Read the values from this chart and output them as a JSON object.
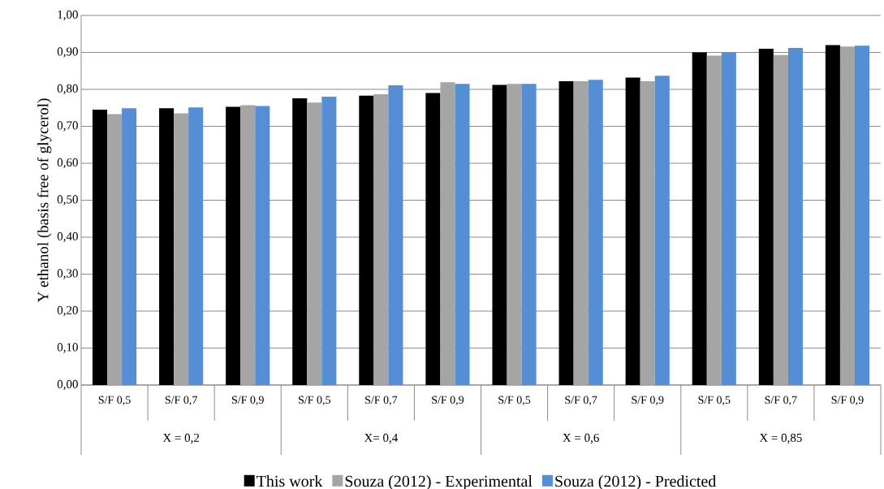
{
  "chart_data": {
    "type": "bar",
    "ylabel": "Y ethanol (basis free of glycerol)",
    "categories": [
      "S/F 0,5",
      "S/F 0,7",
      "S/F 0,9",
      "S/F 0,5",
      "S/F 0,7",
      "S/F 0,9",
      "S/F 0,5",
      "S/F 0,7",
      "S/F 0,9",
      "S/F 0,5",
      "S/F 0,7",
      "S/F 0,9"
    ],
    "annotations": [
      "X = 0,2",
      "X= 0,4",
      "X = 0,6",
      "X = 0,85"
    ],
    "series": [
      {
        "name": "This work",
        "color": "#000000",
        "values": [
          0.745,
          0.749,
          0.753,
          0.776,
          0.783,
          0.79,
          0.812,
          0.822,
          0.832,
          0.9,
          0.91,
          0.92
        ]
      },
      {
        "name": "Souza (2012) - Experimental",
        "color": "#a5a5a5",
        "values": [
          0.733,
          0.735,
          0.757,
          0.764,
          0.787,
          0.819,
          0.815,
          0.822,
          0.822,
          0.891,
          0.893,
          0.916
        ]
      },
      {
        "name": "Souza (2012) - Predicted",
        "color": "#558ed5",
        "values": [
          0.749,
          0.751,
          0.755,
          0.78,
          0.811,
          0.815,
          0.815,
          0.826,
          0.837,
          0.9,
          0.912,
          0.918
        ]
      }
    ],
    "ylim": [
      0,
      1
    ],
    "yticks": [
      {
        "value": 0,
        "label": "0,00"
      },
      {
        "value": 0.1,
        "label": "0,10"
      },
      {
        "value": 0.2,
        "label": "0,20"
      },
      {
        "value": 0.3,
        "label": "0,30"
      },
      {
        "value": 0.4,
        "label": "0,40"
      },
      {
        "value": 0.5,
        "label": "0,50"
      },
      {
        "value": 0.6,
        "label": "0,60"
      },
      {
        "value": 0.7,
        "label": "0,70"
      },
      {
        "value": 0.8,
        "label": "0,80"
      },
      {
        "value": 0.9,
        "label": "0,90"
      },
      {
        "value": 1,
        "label": "1,00"
      }
    ],
    "grid": "y",
    "legend": "bottom"
  }
}
